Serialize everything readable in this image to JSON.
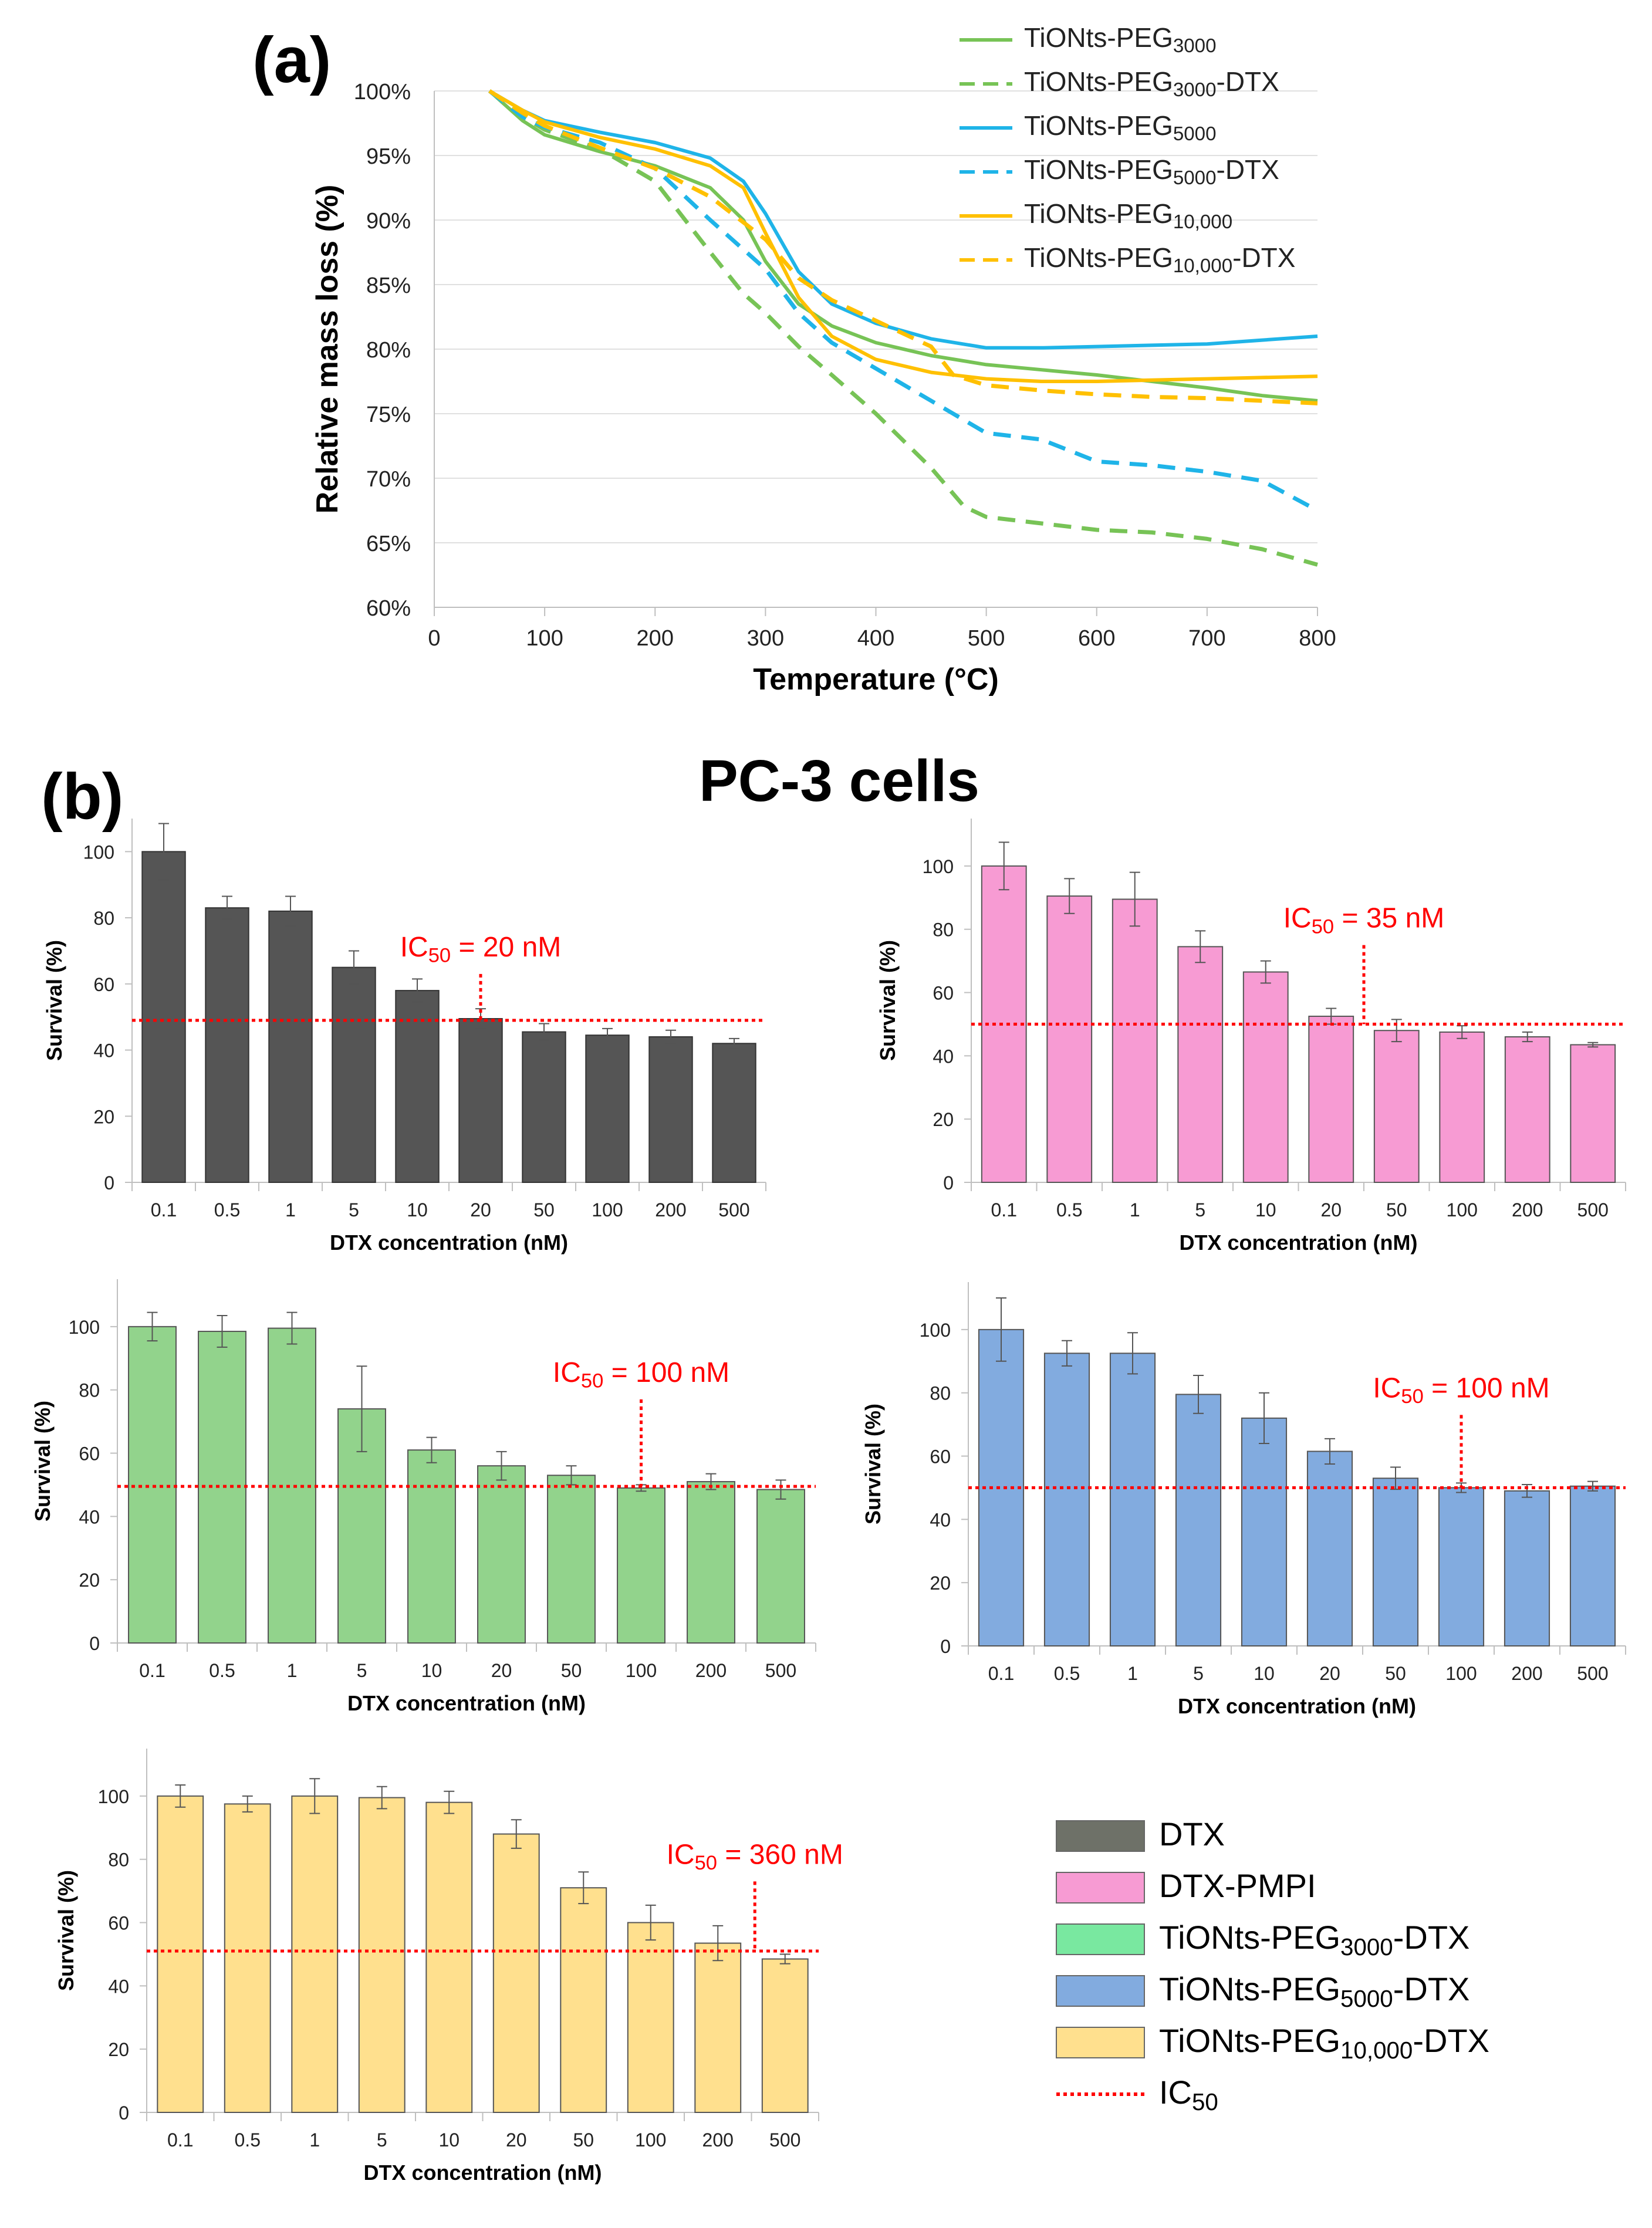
{
  "panel_a": {
    "label": "(a)",
    "chart_data": {
      "type": "line",
      "title": "",
      "xlabel": "Temperature (°C)",
      "ylabel": "Relative mass loss (%)",
      "xlim": [
        0,
        800
      ],
      "ylim": [
        60,
        100
      ],
      "xticks": [
        0,
        100,
        200,
        300,
        400,
        500,
        600,
        700,
        800
      ],
      "yticks": [
        60,
        65,
        70,
        75,
        80,
        85,
        90,
        95,
        100
      ],
      "ytick_labels": [
        "60%",
        "65%",
        "70%",
        "75%",
        "80%",
        "85%",
        "90%",
        "95%",
        "100%"
      ],
      "legend_position": "top-right",
      "series": [
        {
          "name": "TiONts-PEG3000",
          "legend_base": "TiONts-PEG",
          "legend_sub": "3000",
          "legend_tail": "",
          "color": "#77c356",
          "dash": "solid",
          "x": [
            50,
            80,
            100,
            150,
            200,
            250,
            280,
            300,
            330,
            360,
            400,
            450,
            500,
            550,
            600,
            650,
            700,
            750,
            800
          ],
          "y": [
            100,
            97.7,
            96.6,
            95.3,
            94.2,
            92.5,
            90,
            86.8,
            83.5,
            81.8,
            80.5,
            79.5,
            78.8,
            78.4,
            78,
            77.5,
            77,
            76.4,
            76
          ]
        },
        {
          "name": "TiONts-PEG3000-DTX",
          "legend_base": "TiONts-PEG",
          "legend_sub": "3000",
          "legend_tail": "-DTX",
          "color": "#77c356",
          "dash": "dashed",
          "x": [
            50,
            80,
            100,
            150,
            200,
            250,
            280,
            300,
            330,
            360,
            400,
            450,
            480,
            500,
            550,
            600,
            650,
            700,
            750,
            800
          ],
          "y": [
            100,
            98,
            97,
            95.5,
            93,
            87.5,
            84.3,
            82.8,
            80.2,
            78,
            75,
            70.8,
            67.8,
            67,
            66.5,
            66,
            65.8,
            65.3,
            64.5,
            63.3
          ]
        },
        {
          "name": "TiONts-PEG5000",
          "legend_base": "TiONts-PEG",
          "legend_sub": "5000",
          "legend_tail": "",
          "color": "#1fb4e8",
          "dash": "solid",
          "x": [
            50,
            80,
            100,
            150,
            200,
            250,
            280,
            300,
            330,
            360,
            400,
            450,
            500,
            550,
            600,
            650,
            700,
            750,
            800
          ],
          "y": [
            100,
            98.5,
            97.7,
            96.8,
            96,
            94.8,
            93,
            90.5,
            86,
            83.5,
            82,
            80.8,
            80.1,
            80.1,
            80.2,
            80.3,
            80.4,
            80.7,
            81
          ]
        },
        {
          "name": "TiONts-PEG5000-DTX",
          "legend_base": "TiONts-PEG",
          "legend_sub": "5000",
          "legend_tail": "-DTX",
          "color": "#1fb4e8",
          "dash": "dashed",
          "x": [
            50,
            80,
            100,
            150,
            200,
            250,
            300,
            330,
            360,
            400,
            450,
            500,
            550,
            600,
            650,
            700,
            750,
            800
          ],
          "y": [
            100,
            98,
            97.2,
            96,
            94,
            90,
            86.2,
            82.8,
            80.5,
            78.5,
            76,
            73.5,
            73,
            71.3,
            71,
            70.5,
            69.8,
            67.5
          ]
        },
        {
          "name": "TiONts-PEG10,000",
          "legend_base": "TiONts-PEG",
          "legend_sub": "10,000",
          "legend_tail": "",
          "color": "#ffc000",
          "dash": "solid",
          "x": [
            50,
            80,
            100,
            150,
            200,
            250,
            280,
            300,
            330,
            360,
            400,
            450,
            500,
            550,
            600,
            650,
            700,
            750,
            800
          ],
          "y": [
            100,
            98.5,
            97.6,
            96.4,
            95.5,
            94.2,
            92.5,
            89,
            84,
            81,
            79.2,
            78.2,
            77.7,
            77.5,
            77.5,
            77.6,
            77.7,
            77.8,
            77.9
          ]
        },
        {
          "name": "TiONts-PEG10,000-DTX",
          "legend_base": "TiONts-PEG",
          "legend_sub": "10,000",
          "legend_tail": "-DTX",
          "color": "#ffc000",
          "dash": "dashed",
          "x": [
            50,
            80,
            100,
            150,
            200,
            250,
            300,
            330,
            360,
            400,
            450,
            470,
            500,
            550,
            600,
            650,
            700,
            750,
            800
          ],
          "y": [
            100,
            98.3,
            97.3,
            95.6,
            94,
            91.8,
            88.5,
            85.5,
            83.8,
            82.2,
            80.2,
            78,
            77.2,
            76.8,
            76.5,
            76.3,
            76.2,
            76,
            75.8
          ]
        }
      ]
    }
  },
  "panel_b": {
    "label": "(b)",
    "title": "PC-3 cells",
    "chart_data": [
      {
        "type": "bar",
        "name": "DTX",
        "color": "#555555",
        "stroke": "#333333",
        "xlabel": "DTX concentration (nM)",
        "ylabel": "Survival (%)",
        "ylim": [
          0,
          110
        ],
        "yticks": [
          0,
          20,
          40,
          60,
          80,
          100
        ],
        "categories": [
          "0.1",
          "0.5",
          "1",
          "5",
          "10",
          "20",
          "50",
          "100",
          "200",
          "500"
        ],
        "values": [
          100,
          83,
          82,
          65,
          58,
          49.5,
          45.5,
          44.5,
          44,
          42
        ],
        "errors": [
          8.5,
          3.5,
          4.5,
          5,
          3.5,
          3,
          2.5,
          2,
          2,
          1.5
        ],
        "ic50_line": 49,
        "ic50_marker_after_index": 5,
        "ic50_marker_top": 63,
        "ic50_label": "IC",
        "ic50_sub": "50",
        "ic50_value": " = 20 nM"
      },
      {
        "type": "bar",
        "name": "DTX-PMPI",
        "color": "#f79bd3",
        "stroke": "#555555",
        "xlabel": "DTX concentration (nM)",
        "ylabel": "Survival (%)",
        "ylim": [
          0,
          115
        ],
        "yticks": [
          0,
          20,
          40,
          60,
          80,
          100
        ],
        "categories": [
          "0.1",
          "0.5",
          "1",
          "5",
          "10",
          "20",
          "50",
          "100",
          "200",
          "500"
        ],
        "values": [
          100,
          90.5,
          89.5,
          74.5,
          66.5,
          52.5,
          48,
          47.5,
          46,
          43.5
        ],
        "errors": [
          7.5,
          5.5,
          8.5,
          5,
          3.5,
          2.5,
          3.5,
          2,
          1.5,
          0.7
        ],
        "ic50_line": 50,
        "ic50_marker_after_index": 5.5,
        "ic50_marker_top": 75,
        "ic50_label": "IC",
        "ic50_sub": "50",
        "ic50_value": " = 35 nM"
      },
      {
        "type": "bar",
        "name": "TiONts-PEG3000-DTX",
        "color": "#92d38c",
        "stroke": "#555555",
        "xlabel": "DTX concentration (nM)",
        "ylabel": "Survival (%)",
        "ylim": [
          0,
          115
        ],
        "yticks": [
          0,
          20,
          40,
          60,
          80,
          100
        ],
        "categories": [
          "0.1",
          "0.5",
          "1",
          "5",
          "10",
          "20",
          "50",
          "100",
          "200",
          "500"
        ],
        "values": [
          100,
          98.5,
          99.5,
          74,
          61,
          56,
          53,
          49,
          51,
          48.5
        ],
        "errors": [
          4.5,
          5,
          5,
          13.5,
          4,
          4.5,
          3,
          1,
          2.5,
          3
        ],
        "ic50_line": 49.5,
        "ic50_marker_after_index": 7,
        "ic50_marker_top": 77,
        "ic50_label": "IC",
        "ic50_sub": "50",
        "ic50_value": " = 100 nM"
      },
      {
        "type": "bar",
        "name": "TiONts-PEG5000-DTX",
        "color": "#82abdf",
        "stroke": "#555555",
        "xlabel": "DTX concentration (nM)",
        "ylabel": "Survival (%)",
        "ylim": [
          0,
          115
        ],
        "yticks": [
          0,
          20,
          40,
          60,
          80,
          100
        ],
        "categories": [
          "0.1",
          "0.5",
          "1",
          "5",
          "10",
          "20",
          "50",
          "100",
          "200",
          "500"
        ],
        "values": [
          100,
          92.5,
          92.5,
          79.5,
          72,
          61.5,
          53,
          50,
          49,
          50.5
        ],
        "errors": [
          10,
          4,
          6.5,
          6,
          8,
          4,
          3.5,
          1.5,
          2,
          1.5
        ],
        "ic50_line": 50,
        "ic50_marker_after_index": 7,
        "ic50_marker_top": 73,
        "ic50_label": "IC",
        "ic50_sub": "50",
        "ic50_value": " = 100 nM"
      },
      {
        "type": "bar",
        "name": "TiONts-PEG10,000-DTX",
        "color": "#ffe08e",
        "stroke": "#555555",
        "xlabel": "DTX concentration (nM)",
        "ylabel": "Survival (%)",
        "ylim": [
          0,
          115
        ],
        "yticks": [
          0,
          20,
          40,
          60,
          80,
          100
        ],
        "categories": [
          "0.1",
          "0.5",
          "1",
          "5",
          "10",
          "20",
          "50",
          "100",
          "200",
          "500"
        ],
        "values": [
          100,
          97.5,
          100,
          99.5,
          98,
          88,
          71,
          60,
          53.5,
          48.5
        ],
        "errors": [
          3.5,
          2.5,
          5.5,
          3.5,
          3.5,
          4.5,
          5,
          5.5,
          5.5,
          1.5
        ],
        "ic50_line": 51,
        "ic50_marker_after_index": 8.55,
        "ic50_marker_top": 73,
        "ic50_label": "IC",
        "ic50_sub": "50",
        "ic50_value": " = 360 nM"
      }
    ],
    "legend": [
      {
        "label": "DTX",
        "base": "DTX",
        "sub": "",
        "tail": "",
        "color": "#6e7168",
        "kind": "box"
      },
      {
        "label": "DTX-PMPI",
        "base": "DTX-PMPI",
        "sub": "",
        "tail": "",
        "color": "#f79bd3",
        "kind": "box"
      },
      {
        "label": "TiONts-PEG3000-DTX",
        "base": "TiONts-PEG",
        "sub": "3000",
        "tail": "-DTX",
        "color": "#79e8a0",
        "kind": "box"
      },
      {
        "label": "TiONts-PEG5000-DTX",
        "base": "TiONts-PEG",
        "sub": "5000",
        "tail": "-DTX",
        "color": "#82abdf",
        "kind": "box"
      },
      {
        "label": "TiONts-PEG10,000-DTX",
        "base": "TiONts-PEG",
        "sub": "10,000",
        "tail": "-DTX",
        "color": "#ffe08e",
        "kind": "box"
      },
      {
        "label": "IC50",
        "base": "IC",
        "sub": "50",
        "tail": "",
        "color": "#ff0000",
        "kind": "dotted"
      }
    ]
  }
}
